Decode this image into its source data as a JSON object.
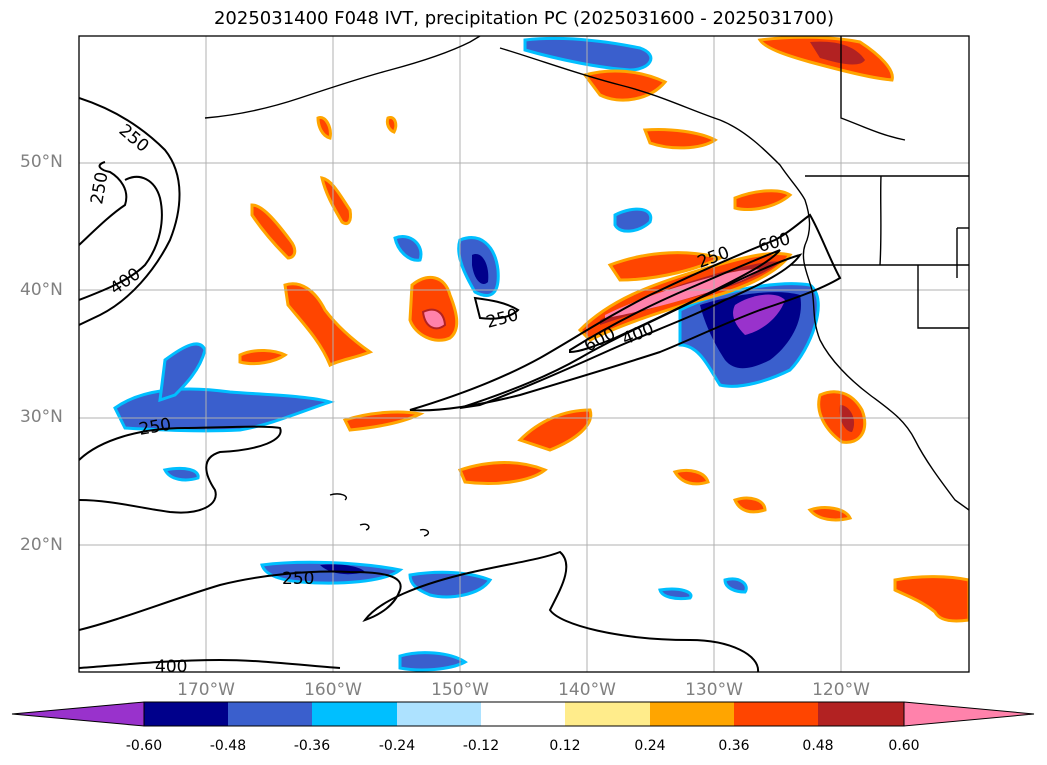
{
  "title": "2025031400 F048 IVT, precipitation PC (2025031600 - 2025031700)",
  "map": {
    "lat_labels": [
      "50°N",
      "40°N",
      "30°N",
      "20°N"
    ],
    "lon_labels": [
      "170°W",
      "160°W",
      "150°W",
      "140°W",
      "130°W",
      "120°W"
    ],
    "contour_labels": [
      "250",
      "250",
      "400",
      "250",
      "250",
      "400",
      "250",
      "600",
      "600",
      "400",
      "250",
      "400"
    ]
  },
  "colorbar": {
    "colors": [
      "#9932CC",
      "#00008B",
      "#3A5FCD",
      "#00BFFF",
      "#ADE2FF",
      "#FFFFFF",
      "#FFEC8B",
      "#FFA500",
      "#FF4500",
      "#B22222",
      "#FF82AB"
    ],
    "tick_labels": [
      "-0.60",
      "-0.48",
      "-0.36",
      "-0.24",
      "-0.12",
      "0.12",
      "0.24",
      "0.36",
      "0.48",
      "0.60"
    ]
  }
}
